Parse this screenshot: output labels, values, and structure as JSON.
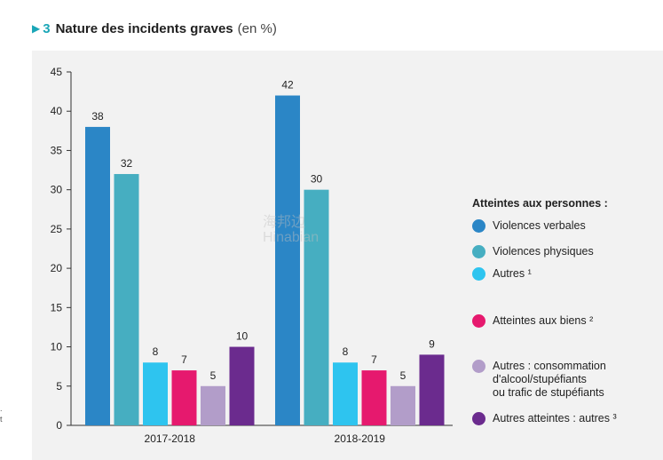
{
  "header": {
    "arrow": "▶",
    "number": "3",
    "title": "Nature des incidents graves",
    "unit": "(en %)"
  },
  "side_marks": [
    ".",
    "t"
  ],
  "watermark": {
    "line1": "海邦边",
    "line2": "Hinabian"
  },
  "chart_data": {
    "type": "bar",
    "title": "Nature des incidents graves (en %)",
    "xlabel": "",
    "ylabel": "",
    "ylim": [
      0,
      45
    ],
    "yticks": [
      0,
      5,
      10,
      15,
      20,
      25,
      30,
      35,
      40,
      45
    ],
    "categories": [
      "2017-2018",
      "2018-2019"
    ],
    "series": [
      {
        "name": "Violences verbales",
        "color": "#2b86c6",
        "values": [
          38,
          42
        ]
      },
      {
        "name": "Violences physiques",
        "color": "#46aec1",
        "values": [
          32,
          30
        ]
      },
      {
        "name": "Autres ¹",
        "color": "#2ec4ef",
        "values": [
          8,
          8
        ]
      },
      {
        "name": "Atteintes aux biens ²",
        "color": "#e6196e",
        "values": [
          7,
          7
        ]
      },
      {
        "name": "Autres : consommation\nd'alcool/stupéfiants\nou trafic de stupéfiants",
        "color": "#b29dc9",
        "values": [
          5,
          5
        ]
      },
      {
        "name": "Autres atteintes : autres ³",
        "color": "#6b2b8e",
        "values": [
          10,
          9
        ]
      }
    ],
    "legend": {
      "heading": "Atteintes aux personnes :",
      "placement": "right"
    },
    "grid": false
  }
}
